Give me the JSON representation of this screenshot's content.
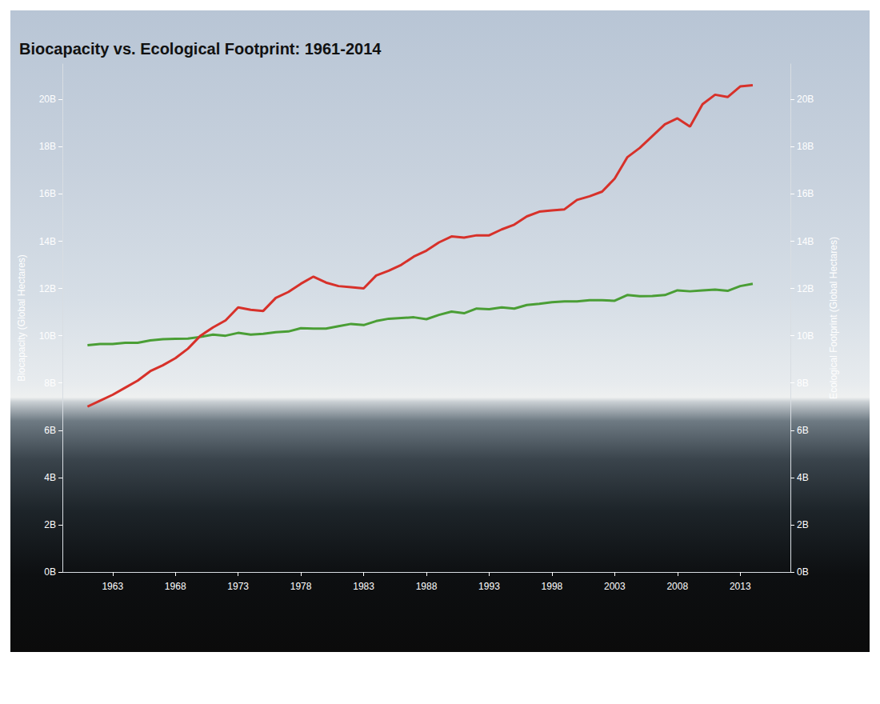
{
  "chart_data": {
    "type": "line",
    "title": "Biocapacity vs. Ecological Footprint: 1961-2014",
    "ylabel": "Biocapacity (Global Hectares)",
    "y2label": "Ecological Footprint (Global Hectares)",
    "x": [
      1961,
      1962,
      1963,
      1964,
      1965,
      1966,
      1967,
      1968,
      1969,
      1970,
      1971,
      1972,
      1973,
      1974,
      1975,
      1976,
      1977,
      1978,
      1979,
      1980,
      1981,
      1982,
      1983,
      1984,
      1985,
      1986,
      1987,
      1988,
      1989,
      1990,
      1991,
      1992,
      1993,
      1994,
      1995,
      1996,
      1997,
      1998,
      1999,
      2000,
      2001,
      2002,
      2003,
      2004,
      2005,
      2006,
      2007,
      2008,
      2009,
      2010,
      2011,
      2012,
      2013,
      2014
    ],
    "xlim": [
      1959,
      2017
    ],
    "xticks": [
      1963,
      1968,
      1973,
      1978,
      1983,
      1988,
      1993,
      1998,
      2003,
      2008,
      2013
    ],
    "ylim": [
      0,
      21.5
    ],
    "yticks": [
      {
        "value": 0,
        "label": "0B"
      },
      {
        "value": 2,
        "label": "2B"
      },
      {
        "value": 4,
        "label": "4B"
      },
      {
        "value": 6,
        "label": "6B"
      },
      {
        "value": 8,
        "label": "8B"
      },
      {
        "value": 10,
        "label": "10B"
      },
      {
        "value": 12,
        "label": "12B"
      },
      {
        "value": 14,
        "label": "14B"
      },
      {
        "value": 16,
        "label": "16B"
      },
      {
        "value": 18,
        "label": "18B"
      },
      {
        "value": 20,
        "label": "20B"
      }
    ],
    "y2lim": [
      0,
      21.5
    ],
    "y2ticks": [
      {
        "value": 0,
        "label": "0B"
      },
      {
        "value": 2,
        "label": "2B"
      },
      {
        "value": 4,
        "label": "4B"
      },
      {
        "value": 6,
        "label": "6B"
      },
      {
        "value": 8,
        "label": "8B"
      },
      {
        "value": 10,
        "label": "10B"
      },
      {
        "value": 12,
        "label": "12B"
      },
      {
        "value": 14,
        "label": "14B"
      },
      {
        "value": 16,
        "label": "16B"
      },
      {
        "value": 18,
        "label": "18B"
      },
      {
        "value": 20,
        "label": "20B"
      }
    ],
    "grid": false,
    "series": [
      {
        "color": "#4a9e35",
        "values": [
          9.6,
          9.65,
          9.65,
          9.7,
          9.7,
          9.8,
          9.85,
          9.87,
          9.88,
          9.95,
          10.05,
          10.0,
          10.12,
          10.05,
          10.08,
          10.15,
          10.18,
          10.32,
          10.3,
          10.3,
          10.4,
          10.5,
          10.45,
          10.62,
          10.72,
          10.75,
          10.78,
          10.7,
          10.88,
          11.02,
          10.95,
          11.15,
          11.12,
          11.2,
          11.15,
          11.3,
          11.35,
          11.42,
          11.45,
          11.45,
          11.5,
          11.5,
          11.48,
          11.72,
          11.67,
          11.68,
          11.72,
          11.92,
          11.88,
          11.92,
          11.95,
          11.9,
          12.1,
          12.2
        ]
      },
      {
        "color": "#d7312a",
        "axis": "y2",
        "values": [
          7.0,
          7.25,
          7.5,
          7.8,
          8.1,
          8.5,
          8.75,
          9.05,
          9.45,
          10.0,
          10.35,
          10.65,
          11.2,
          11.1,
          11.05,
          11.6,
          11.85,
          12.2,
          12.5,
          12.25,
          12.1,
          12.05,
          12.0,
          12.55,
          12.75,
          13.0,
          13.35,
          13.6,
          13.95,
          14.2,
          14.15,
          14.25,
          14.25,
          14.5,
          14.7,
          15.05,
          15.25,
          15.3,
          15.35,
          15.75,
          15.9,
          16.1,
          16.65,
          17.55,
          17.95,
          18.45,
          18.95,
          19.2,
          18.85,
          19.8,
          20.2,
          20.1,
          20.55,
          20.6
        ]
      }
    ]
  }
}
